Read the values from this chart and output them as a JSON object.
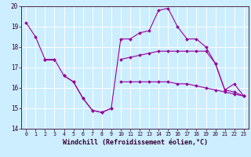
{
  "background_color": "#cceeff",
  "grid_color": "#ffffff",
  "line_color": "#990099",
  "hours": [
    0,
    1,
    2,
    3,
    4,
    5,
    6,
    7,
    8,
    9,
    10,
    11,
    12,
    13,
    14,
    15,
    16,
    17,
    18,
    19,
    20,
    21,
    22,
    23
  ],
  "curve_main": [
    19.2,
    18.5,
    17.4,
    17.4,
    16.6,
    16.3,
    15.5,
    14.9,
    14.8,
    15.0,
    18.4,
    18.4,
    18.7,
    18.8,
    19.8,
    19.9,
    19.0,
    18.4,
    18.4,
    18.0,
    17.2,
    15.9,
    16.2,
    15.6
  ],
  "curve_mid1": [
    null,
    null,
    17.4,
    17.4,
    null,
    null,
    null,
    null,
    null,
    null,
    17.4,
    17.5,
    17.6,
    17.7,
    17.8,
    17.8,
    17.8,
    17.8,
    17.8,
    17.8,
    17.2,
    15.9,
    15.8,
    15.6
  ],
  "curve_mid2": [
    null,
    null,
    null,
    null,
    null,
    null,
    null,
    null,
    null,
    null,
    16.3,
    16.3,
    16.3,
    16.3,
    16.3,
    16.3,
    16.2,
    16.2,
    16.1,
    16.0,
    15.9,
    15.8,
    15.7,
    15.6
  ],
  "curve_low": [
    null,
    null,
    null,
    null,
    16.6,
    16.3,
    15.5,
    14.9,
    14.8,
    15.0,
    null,
    null,
    null,
    null,
    null,
    null,
    null,
    null,
    null,
    null,
    null,
    null,
    null,
    null
  ],
  "ylim": [
    14.0,
    20.0
  ],
  "yticks": [
    14,
    15,
    16,
    17,
    18,
    19,
    20
  ],
  "xlabel": "Windchill (Refroidissement éolien,°C)",
  "xlabel_fontsize": 6.0,
  "tick_fontsize": 5.5,
  "xtick_fontsize": 4.8
}
